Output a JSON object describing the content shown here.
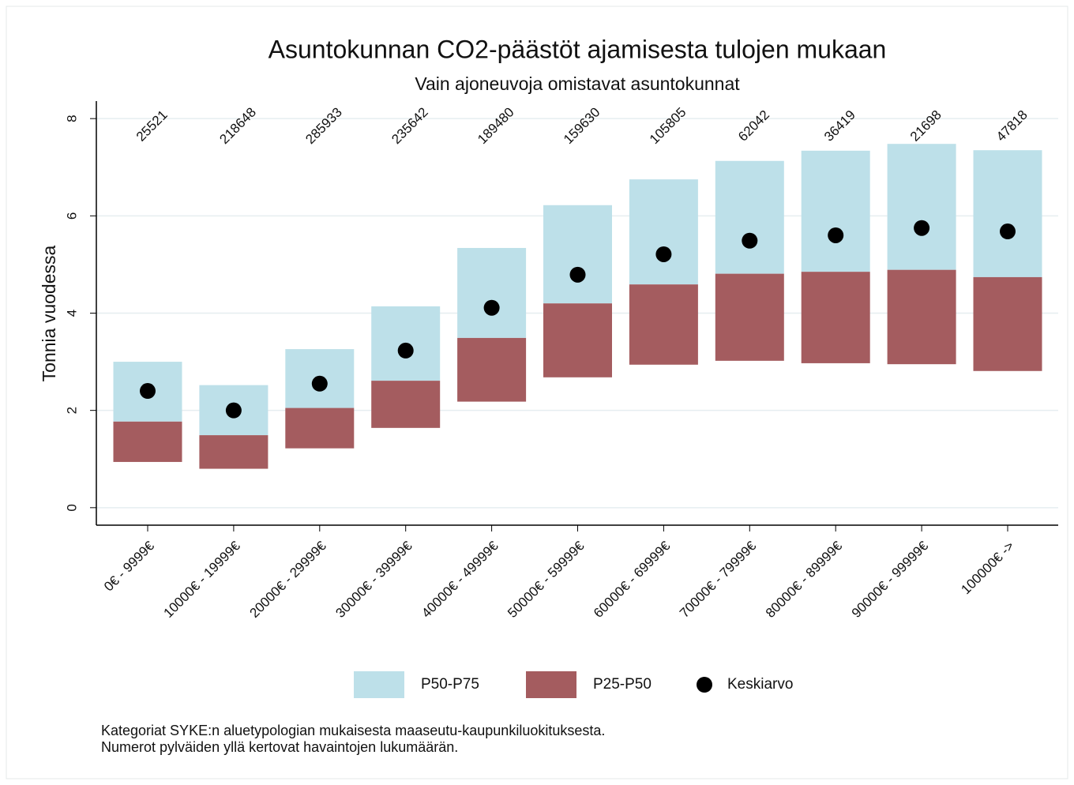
{
  "chart_data": {
    "type": "floating-bar",
    "title": "Asuntokunnan CO2-päästöt ajamisesta tulojen mukaan",
    "subtitle": "Vain ajoneuvoja omistavat asuntokunnat",
    "y_label": "Tonnia vuodessa",
    "categories": [
      "0€ - 9999€",
      "10000€ - 19999€",
      "20000€ - 29999€",
      "30000€ - 39999€",
      "40000€ - 49999€",
      "50000€ - 59999€",
      "60000€ - 69999€",
      "70000€ - 79999€",
      "80000€ - 89999€",
      "90000€ - 99999€",
      "100000€ ->"
    ],
    "counts": [
      25521,
      218648,
      285933,
      235642,
      189480,
      159630,
      105805,
      62042,
      36419,
      21698,
      47818
    ],
    "series": [
      {
        "name": "P50-P75",
        "color": "#bde0e9",
        "low": [
          1.77,
          1.49,
          2.05,
          2.61,
          3.49,
          4.2,
          4.59,
          4.81,
          4.85,
          4.89,
          4.74
        ],
        "high": [
          3.0,
          2.52,
          3.26,
          4.14,
          5.34,
          6.22,
          6.75,
          7.13,
          7.34,
          7.48,
          7.35
        ]
      },
      {
        "name": "P25-P50",
        "color": "#a45c5f",
        "low": [
          0.94,
          0.8,
          1.22,
          1.64,
          2.18,
          2.68,
          2.94,
          3.02,
          2.97,
          2.95,
          2.81
        ],
        "high": [
          1.77,
          1.49,
          2.05,
          2.61,
          3.49,
          4.2,
          4.59,
          4.81,
          4.85,
          4.89,
          4.74
        ]
      }
    ],
    "mean": {
      "name": "Keskiarvo",
      "color": "#000000",
      "values": [
        2.4,
        2.0,
        2.55,
        3.23,
        4.11,
        4.79,
        5.21,
        5.49,
        5.6,
        5.75,
        5.68
      ]
    },
    "ylim": [
      -0.36,
      8.36
    ],
    "yticks": [
      0,
      2,
      4,
      6,
      8
    ],
    "grid": true,
    "notes": [
      "Kategoriat SYKE:n aluetypologian mukaisesta maaseutu-kaupunkiluokituksesta.",
      "Numerot pylväiden yllä kertovat havaintojen lukumäärän."
    ]
  }
}
